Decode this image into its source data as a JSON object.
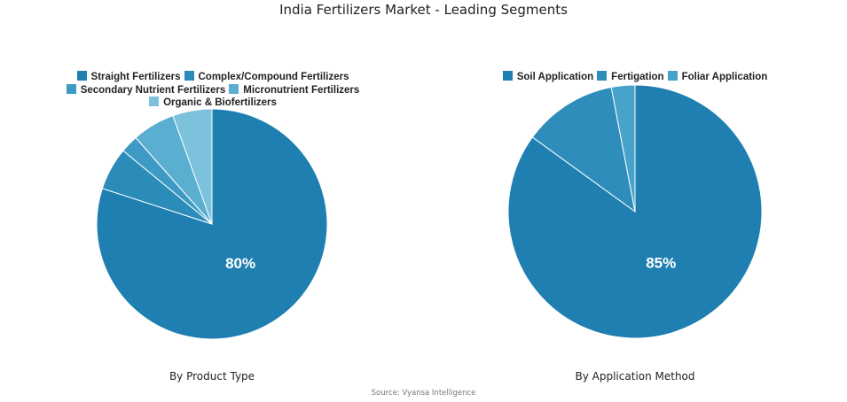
{
  "title": "India Fertilizers Market - Leading Segments",
  "source": "Source: Vyansa Intelligence",
  "chart_data": [
    {
      "type": "pie",
      "title": "By Product Type",
      "categories": [
        "Straight Fertilizers",
        "Complex/Compound Fertilizers",
        "Secondary Nutrient Fertilizers",
        "Micronutrient Fertilizers",
        "Organic & Biofertilizers"
      ],
      "values": [
        80,
        6,
        2.5,
        6,
        5.5
      ],
      "colors": [
        "#1f7fb0",
        "#2b8cba",
        "#3d9ac4",
        "#5aaed0",
        "#7cc2dc"
      ],
      "data_labels": [
        "80%",
        "",
        "",
        "",
        ""
      ],
      "legend_position": "top"
    },
    {
      "type": "pie",
      "title": "By Application Method",
      "categories": [
        "Soil Application",
        "Fertigation",
        "Foliar Application"
      ],
      "values": [
        85,
        12,
        3
      ],
      "colors": [
        "#1f7fb0",
        "#2e8dba",
        "#47a3c9"
      ],
      "data_labels": [
        "85%",
        "",
        ""
      ],
      "legend_position": "top"
    }
  ],
  "legend_left": {
    "rows": [
      [
        {
          "label": "Straight Fertilizers",
          "idx": 0
        },
        {
          "label": "Complex/Compound Fertilizers",
          "idx": 1
        }
      ],
      [
        {
          "label": "Secondary Nutrient Fertilizers",
          "idx": 2
        },
        {
          "label": "Micronutrient Fertilizers",
          "idx": 3
        }
      ],
      [
        {
          "label": "Organic & Biofertilizers",
          "idx": 4
        }
      ]
    ]
  },
  "legend_right": {
    "rows": [
      [
        {
          "label": "Soil Application",
          "idx": 0
        },
        {
          "label": "Fertigation",
          "idx": 1
        },
        {
          "label": "Foliar Application",
          "idx": 2
        }
      ]
    ]
  }
}
